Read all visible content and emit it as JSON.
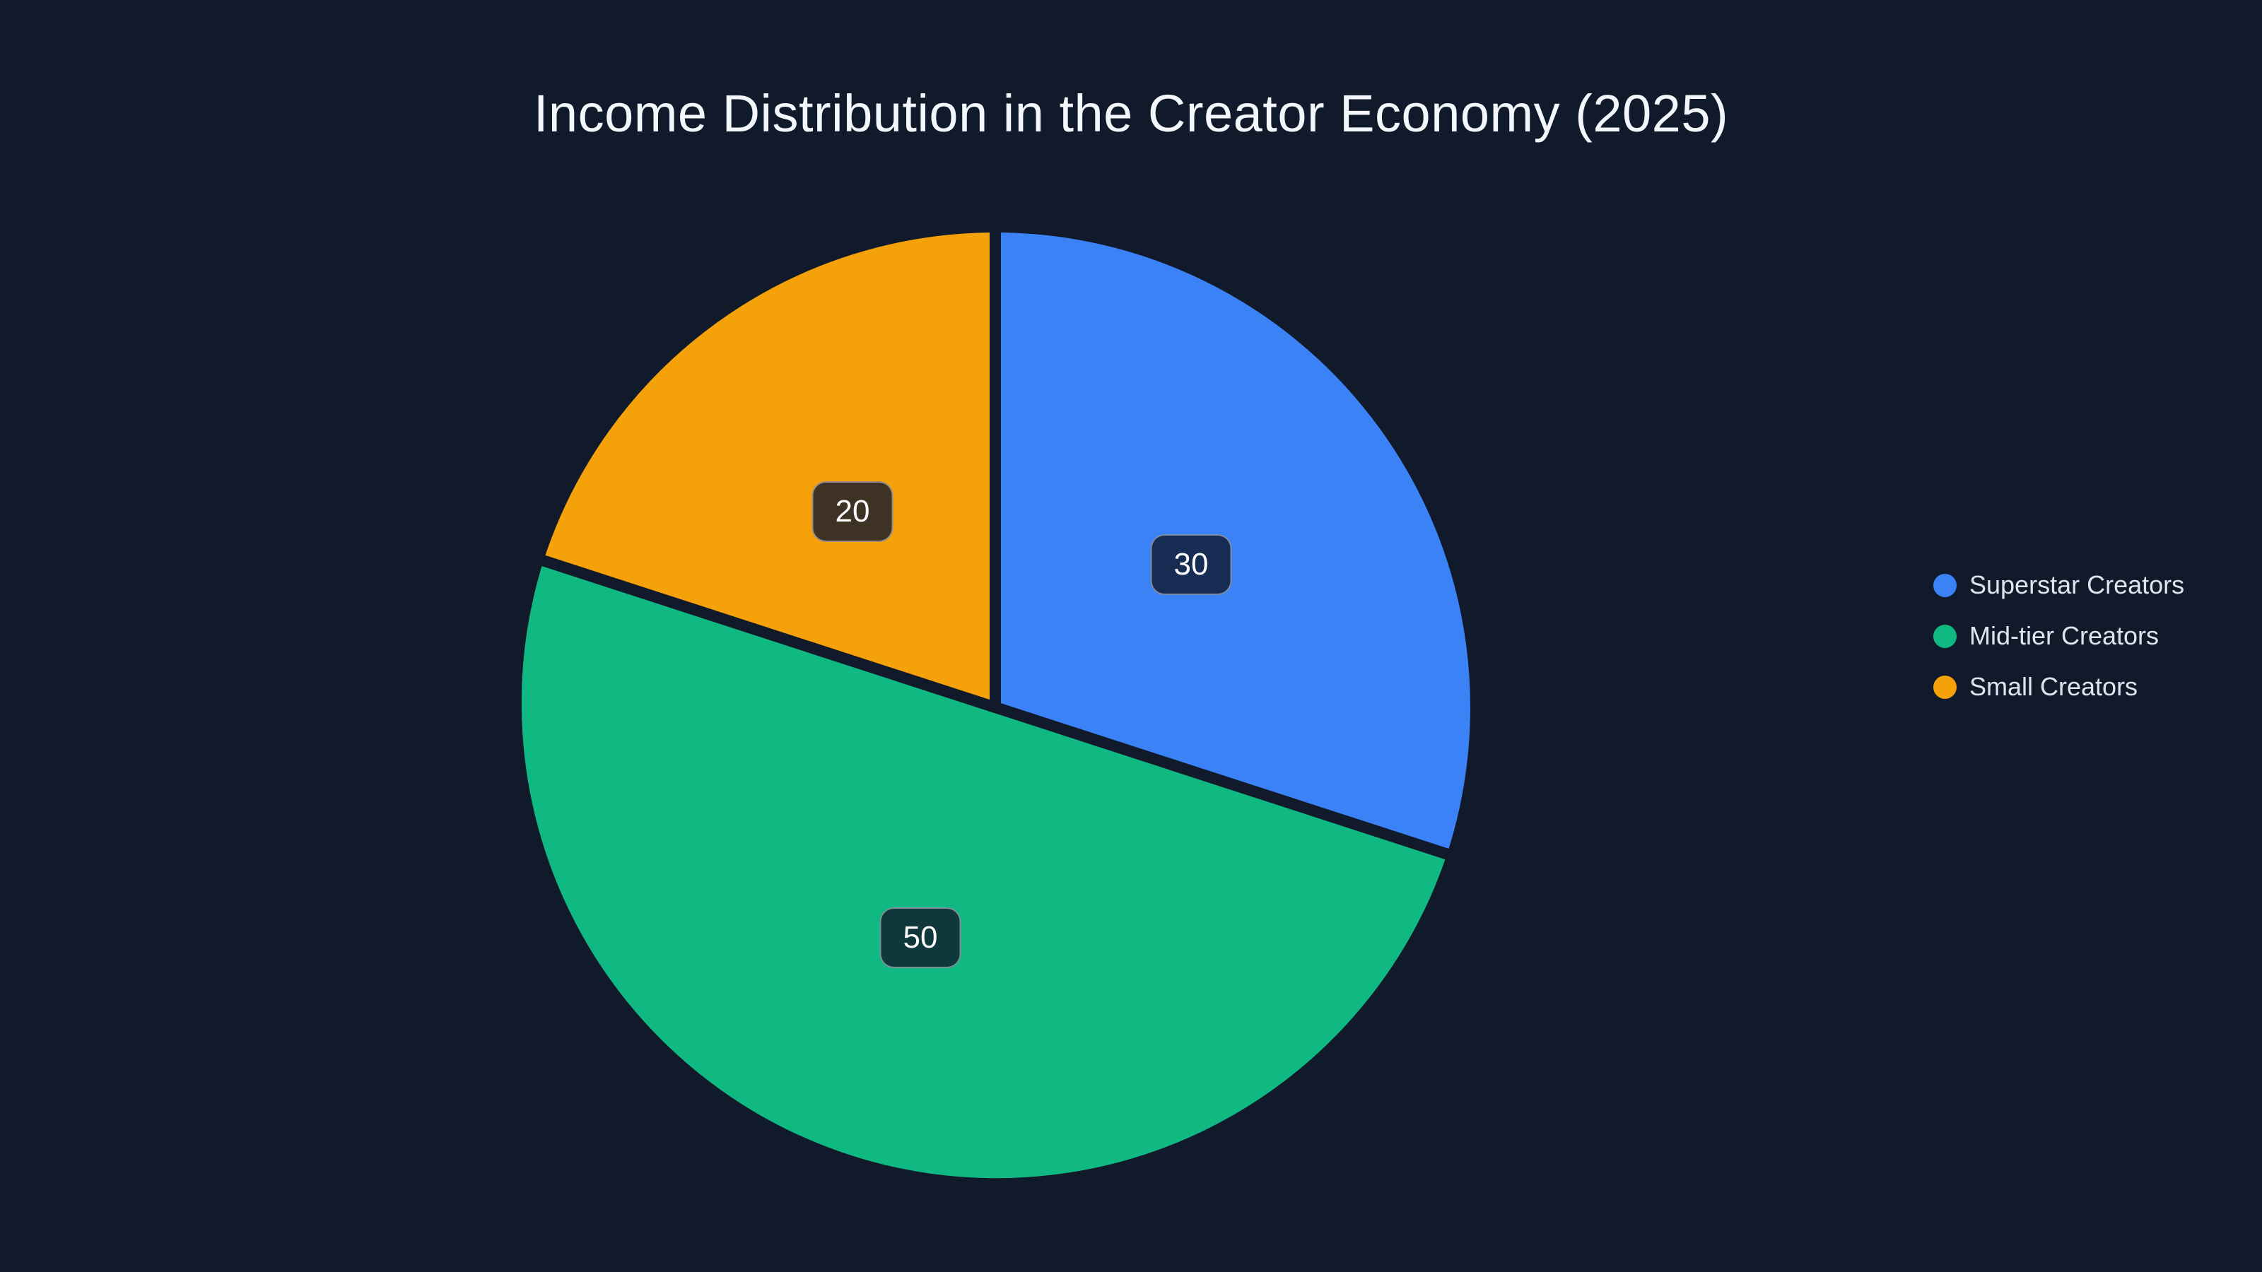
{
  "title": "Income Distribution in the Creator Economy (2025)",
  "colors": {
    "background": "#111a2b",
    "title_text": "#f3f6fa",
    "legend_text": "#dfe5ee",
    "slice_gap": "#111a2b",
    "label_text": "#ffffff",
    "label_background": "rgba(15,23,42,0.8)",
    "label_border": "rgba(255,255,255,0.45)"
  },
  "chart_data": {
    "type": "pie",
    "title": "Income Distribution in the Creator Economy (2025)",
    "slices": [
      {
        "label": "Superstar Creators",
        "value": 30,
        "color": "#3b82f6"
      },
      {
        "label": "Mid-tier Creators",
        "value": 50,
        "color": "#10b981"
      },
      {
        "label": "Small Creators",
        "value": 20,
        "color": "#f5a10a"
      }
    ],
    "total": 100,
    "start_angle": "top",
    "direction": "clockwise",
    "value_labels_shown": [
      30,
      50,
      20
    ],
    "label_style": "value in dark rounded badge at mid-radius",
    "legend_position": "right",
    "grid": false
  }
}
